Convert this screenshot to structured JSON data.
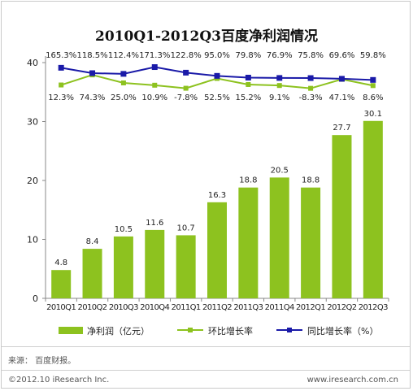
{
  "chart_data": {
    "type": "bar",
    "title": "2010Q1-2012Q3百度净利润情况",
    "categories": [
      "2010Q1",
      "2010Q2",
      "2010Q3",
      "2010Q4",
      "2011Q1",
      "2011Q2",
      "2011Q3",
      "2011Q4",
      "2012Q1",
      "2012Q2",
      "2012Q3"
    ],
    "ylim": [
      0,
      40
    ],
    "yticks": [
      0,
      10,
      20,
      30,
      40
    ],
    "series": [
      {
        "name": "净利润（亿元）",
        "kind": "bar",
        "color": "#8dc21f",
        "values": [
          4.8,
          8.4,
          10.5,
          11.6,
          10.7,
          16.3,
          18.8,
          20.5,
          18.8,
          27.7,
          30.1
        ],
        "labels": [
          "4.8",
          "8.4",
          "10.5",
          "11.6",
          "10.7",
          "16.3",
          "18.8",
          "20.5",
          "18.8",
          "27.7",
          "30.1"
        ]
      },
      {
        "name": "环比增长率",
        "kind": "line",
        "color": "#8dc21f",
        "values": [
          12.3,
          74.3,
          25.0,
          10.9,
          -7.8,
          52.5,
          15.2,
          9.1,
          -8.3,
          47.1,
          8.6
        ],
        "labels": [
          "12.3%",
          "74.3%",
          "25.0%",
          "10.9%",
          "-7.8%",
          "52.5%",
          "15.2%",
          "9.1%",
          "-8.3%",
          "47.1%",
          "8.6%"
        ]
      },
      {
        "name": "同比增长率（%）",
        "kind": "line",
        "color": "#1a1aa8",
        "values": [
          165.3,
          118.5,
          112.4,
          171.3,
          122.8,
          95.0,
          79.8,
          76.9,
          75.8,
          69.6,
          59.8
        ],
        "labels": [
          "165.3%",
          "118.5%",
          "112.4%",
          "171.3%",
          "122.8%",
          "95.0%",
          "79.8%",
          "76.9%",
          "75.8%",
          "69.6%",
          "59.8%"
        ]
      }
    ],
    "legend_position": "bottom",
    "grid": false
  },
  "footer": {
    "source": "来源：  百度财报。",
    "copyright": "©2012.10 iResearch Inc.",
    "website": "www.iresearch.com.cn"
  }
}
